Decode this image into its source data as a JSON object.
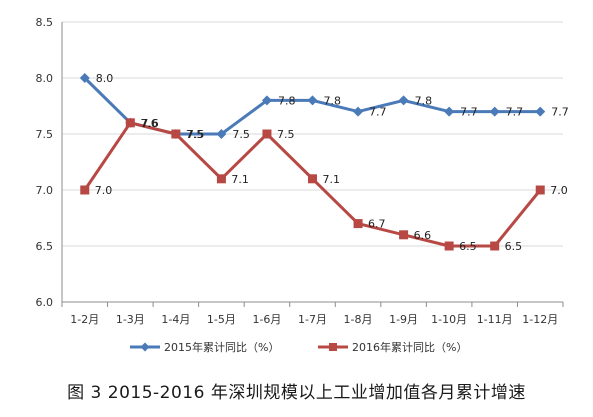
{
  "chart_data": {
    "type": "line",
    "caption": "图 3 2015-2016 年深圳规模以上工业增加值各月累计增速",
    "categories": [
      "1-2月",
      "1-3月",
      "1-4月",
      "1-5月",
      "1-6月",
      "1-7月",
      "1-8月",
      "1-9月",
      "1-10月",
      "1-11月",
      "1-12月"
    ],
    "ylim": [
      6.0,
      8.5
    ],
    "yticks": [
      "8.5",
      "8.0",
      "7.5",
      "7.0",
      "6.5",
      "6.0"
    ],
    "grid": true,
    "legend_position": "bottom",
    "series": [
      {
        "name": "2015年累计同比（%）",
        "values": [
          8.0,
          7.6,
          7.5,
          7.5,
          7.8,
          7.8,
          7.7,
          7.8,
          7.7,
          7.7,
          7.7
        ],
        "labels": [
          "8.0",
          "7.6",
          "7.5",
          "7.5",
          "7.8",
          "7.8",
          "7.7",
          "7.8",
          "7.7",
          "7.7",
          "7.7"
        ],
        "color": "#4a7ab8",
        "marker": "diamond"
      },
      {
        "name": "2016年累计同比（%）",
        "values": [
          7.0,
          7.6,
          7.5,
          7.1,
          7.5,
          7.1,
          6.7,
          6.6,
          6.5,
          6.5,
          7.0
        ],
        "labels": [
          "7.0",
          "7.6",
          "7.5",
          "7.1",
          "7.5",
          "7.1",
          "6.7",
          "6.6",
          "6.5",
          "6.5",
          "7.0"
        ],
        "color": "#b84844",
        "marker": "square"
      }
    ],
    "grid_color": "#d9d9d9",
    "axis_color": "#8c8c8c"
  }
}
